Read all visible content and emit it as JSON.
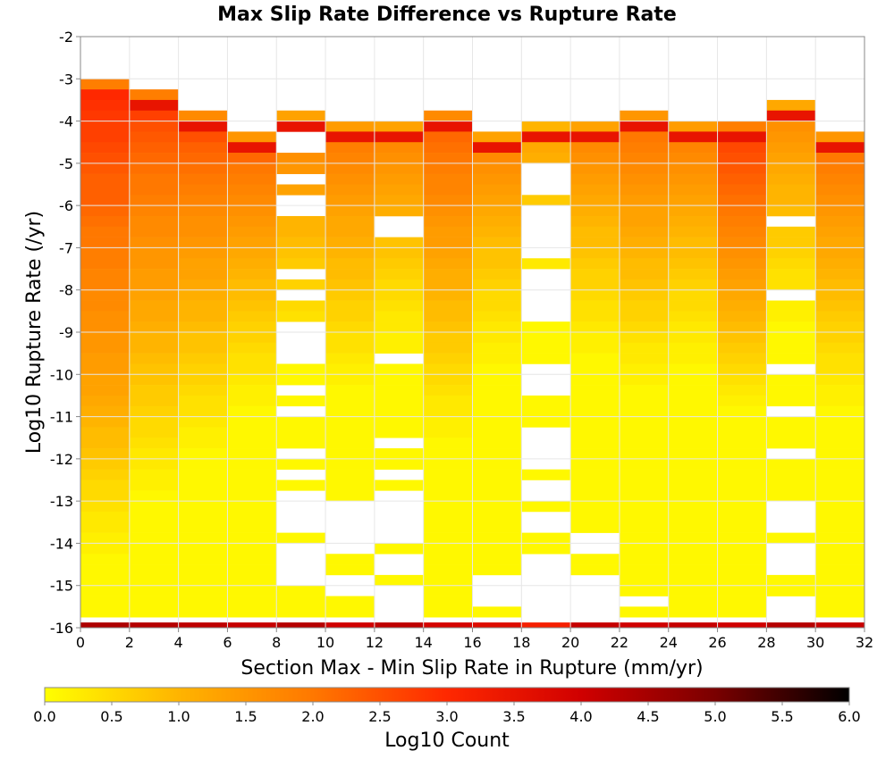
{
  "chart_data": {
    "type": "heatmap",
    "title": "Max Slip Rate Difference vs Rupture Rate",
    "xlabel": "Section Max - Min Slip Rate in Rupture (mm/yr)",
    "ylabel": "Log10 Rupture Rate (/yr)",
    "xlim": [
      0,
      32
    ],
    "ylim": [
      -16,
      -2
    ],
    "x_ticks": [
      "0",
      "2",
      "4",
      "6",
      "8",
      "10",
      "12",
      "14",
      "16",
      "18",
      "20",
      "22",
      "24",
      "26",
      "28",
      "30",
      "32"
    ],
    "y_ticks": [
      "-2",
      "-3",
      "-4",
      "-5",
      "-6",
      "-7",
      "-8",
      "-9",
      "-10",
      "-11",
      "-12",
      "-13",
      "-14",
      "-15",
      "-16"
    ],
    "x_bin_width": 2,
    "y_bin_height": 0.25,
    "grid": true,
    "colorbar": {
      "label": "Log10 Count",
      "range": [
        0,
        6
      ],
      "ticks": [
        "0.0",
        "0.5",
        "1.0",
        "1.5",
        "2.0",
        "2.5",
        "3.0",
        "3.5",
        "4.0",
        "4.5",
        "5.0",
        "5.5",
        "6.0"
      ],
      "colors": [
        "#ffff00",
        "#ffb400",
        "#ff7800",
        "#ff2800",
        "#d00000",
        "#7a0000",
        "#000000"
      ]
    },
    "columns": [
      {
        "x": 1,
        "top": -3.0,
        "values": [
          1.9,
          3.0,
          2.9,
          2.8,
          2.7,
          2.7,
          2.6,
          2.5,
          2.4,
          2.3,
          2.3,
          2.3,
          2.2,
          2.1,
          2.0,
          2.0,
          1.9,
          1.9,
          1.8,
          1.8,
          1.7,
          1.7,
          1.6,
          1.6,
          1.5,
          1.5,
          1.4,
          1.4,
          1.3,
          1.3,
          1.2,
          1.1,
          1.0,
          0.9,
          0.9,
          0.8,
          0.7,
          0.6,
          0.5,
          0.5,
          0.4,
          0.3,
          0.3,
          0.2,
          0.2,
          0.1,
          0.1,
          0.1,
          0.1,
          0.1,
          0.1,
          0.1,
          0.1,
          0.1
        ]
      },
      {
        "x": 3,
        "top": -3.25,
        "values": [
          1.9,
          3.5,
          2.7,
          2.5,
          2.4,
          2.3,
          2.2,
          2.1,
          2.0,
          2.0,
          1.9,
          1.8,
          1.7,
          1.7,
          1.6,
          1.5,
          1.5,
          1.4,
          1.4,
          1.3,
          1.2,
          1.2,
          1.1,
          1.0,
          1.0,
          0.9,
          0.8,
          0.8,
          0.7,
          0.7,
          0.6,
          0.5,
          0.5,
          0.4,
          0.3,
          0.3,
          0.2,
          0.2,
          0.1,
          0.1,
          0.1,
          0.1,
          0.1,
          0.1,
          0.1,
          0.1,
          0.1,
          0.1,
          0.1,
          0.1,
          0.1,
          0.1,
          0.1
        ]
      },
      {
        "x": 5,
        "top": -3.75,
        "values": [
          1.7,
          3.5,
          2.5,
          2.3,
          2.2,
          2.1,
          2.0,
          1.9,
          1.8,
          1.7,
          1.6,
          1.6,
          1.5,
          1.4,
          1.3,
          1.3,
          1.2,
          1.1,
          1.0,
          1.0,
          0.9,
          0.8,
          0.8,
          0.7,
          0.6,
          0.6,
          0.5,
          0.4,
          0.4,
          0.3,
          0.2,
          0.2,
          0.1,
          0.1,
          0.1,
          0.1,
          0.1,
          0.1,
          0.1,
          0.1,
          0.1,
          0.1,
          0.1,
          0.1,
          0.1,
          0.1,
          0.1,
          0.1,
          0.1
        ]
      },
      {
        "x": 7,
        "top": -4.25,
        "values": [
          1.5,
          3.5,
          2.2,
          2.0,
          1.9,
          1.8,
          1.7,
          1.6,
          1.5,
          1.4,
          1.3,
          1.2,
          1.1,
          1.0,
          0.9,
          0.9,
          0.8,
          0.7,
          0.6,
          0.6,
          0.5,
          0.4,
          0.4,
          0.3,
          0.2,
          0.2,
          0.1,
          0.1,
          0.1,
          0.1,
          0.1,
          0.1,
          0.1,
          0.1,
          0.1,
          0.1,
          0.1,
          0.1,
          0.1,
          0.1,
          0.1,
          0.1,
          0.1,
          0.1,
          0.1,
          0.1,
          0.1
        ]
      },
      {
        "x": 9,
        "top": -3.75,
        "values": [
          1.3,
          3.5,
          1.9,
          1.7,
          1.6,
          1.5,
          1.4,
          1.3,
          1.2,
          1.1,
          1.0,
          1.0,
          0.9,
          0.8,
          0.7,
          0.7,
          0.6,
          0.5,
          0.5,
          0.4,
          0.3,
          0.3,
          0.2,
          0.2,
          0.1,
          0.1,
          0.1,
          0.1,
          0.1,
          0.1,
          0.1,
          0.1,
          0.1,
          0.1,
          0.1,
          0.1,
          0.1,
          0.1,
          0.1,
          0.1,
          0.1,
          0.1,
          0.1,
          0.1,
          0.1,
          0.1,
          0.1,
          0.1,
          0.1
        ]
      },
      {
        "x": 11,
        "top": -4.0,
        "values": [
          1.4,
          3.5,
          1.9,
          1.8,
          1.7,
          1.6,
          1.5,
          1.4,
          1.3,
          1.2,
          1.2,
          1.1,
          1.0,
          0.9,
          0.9,
          0.8,
          0.7,
          0.6,
          0.6,
          0.5,
          0.4,
          0.4,
          0.3,
          0.2,
          0.2,
          0.1,
          0.1,
          0.1,
          0.1,
          0.1,
          0.1,
          0.1,
          0.1,
          0.1,
          0.1,
          0.1,
          0.1,
          0.1,
          0.1,
          0.1,
          0.1,
          0.1,
          0.1,
          0.1,
          0.1,
          0.1,
          0.1,
          0.1
        ]
      },
      {
        "x": 13,
        "top": -4.0,
        "values": [
          1.3,
          3.5,
          1.7,
          1.6,
          1.5,
          1.4,
          1.3,
          1.2,
          1.1,
          1.0,
          0.9,
          0.8,
          0.8,
          0.7,
          0.6,
          0.5,
          0.5,
          0.4,
          0.3,
          0.3,
          0.2,
          0.2,
          0.1,
          0.1,
          0.1,
          0.1,
          0.1,
          0.1,
          0.1,
          0.1,
          0.1,
          0.1,
          0.1,
          0.1,
          0.1,
          0.1,
          0.1,
          0.1,
          0.1,
          0.1,
          0.1,
          0.1,
          0.1,
          0.1,
          0.1,
          0.1,
          0.1,
          0.1
        ]
      },
      {
        "x": 15,
        "top": -3.75,
        "values": [
          1.7,
          3.5,
          2.2,
          2.1,
          2.0,
          1.9,
          1.8,
          1.8,
          1.7,
          1.6,
          1.5,
          1.4,
          1.4,
          1.3,
          1.2,
          1.1,
          1.1,
          1.0,
          0.9,
          0.9,
          0.8,
          0.7,
          0.7,
          0.6,
          0.5,
          0.5,
          0.4,
          0.3,
          0.3,
          0.2,
          0.2,
          0.1,
          0.1,
          0.1,
          0.1,
          0.1,
          0.1,
          0.1,
          0.1,
          0.1,
          0.1,
          0.1,
          0.1,
          0.1,
          0.1,
          0.1,
          0.1,
          0.1,
          0.1
        ]
      },
      {
        "x": 17,
        "top": -4.25,
        "values": [
          1.3,
          3.5,
          1.7,
          1.6,
          1.5,
          1.4,
          1.3,
          1.2,
          1.1,
          1.0,
          0.9,
          0.8,
          0.8,
          0.7,
          0.6,
          0.5,
          0.5,
          0.4,
          0.3,
          0.3,
          0.2,
          0.2,
          0.1,
          0.1,
          0.1,
          0.1,
          0.1,
          0.1,
          0.1,
          0.1,
          0.1,
          0.1,
          0.1,
          0.1,
          0.1,
          0.1,
          0.1,
          0.1,
          0.1,
          0.1,
          0.1,
          0.1,
          0.1,
          0.1,
          0.1,
          0.1,
          0.1
        ]
      },
      {
        "x": 19,
        "top": -4.0,
        "values": [
          1.0,
          3.5,
          1.2,
          1.1,
          1.0,
          0.9,
          0.8,
          0.7,
          0.6,
          0.5,
          0.5,
          0.4,
          0.3,
          0.3,
          0.2,
          0.2,
          0.1,
          0.1,
          0.1,
          0.1,
          0.1,
          0.1,
          0.1,
          0.1,
          0.1,
          0.1,
          0.1,
          0.1,
          0.1,
          0.1,
          0.1,
          0.1,
          0.1,
          0.1,
          0.1,
          0.1,
          0.1,
          0.1,
          0.1,
          0.1,
          0.1,
          0.1,
          0.1,
          0.1,
          0.1,
          0.1,
          0.1,
          0.1
        ]
      },
      {
        "x": 21,
        "top": -4.0,
        "values": [
          1.3,
          3.5,
          1.7,
          1.6,
          1.5,
          1.4,
          1.3,
          1.2,
          1.1,
          1.0,
          0.9,
          0.9,
          0.8,
          0.7,
          0.6,
          0.6,
          0.5,
          0.4,
          0.4,
          0.3,
          0.2,
          0.2,
          0.1,
          0.1,
          0.1,
          0.1,
          0.1,
          0.1,
          0.1,
          0.1,
          0.1,
          0.1,
          0.1,
          0.1,
          0.1,
          0.1,
          0.1,
          0.1,
          0.1,
          0.1,
          0.1,
          0.1,
          0.1,
          0.1,
          0.1,
          0.1,
          0.1,
          0.1
        ]
      },
      {
        "x": 23,
        "top": -3.75,
        "values": [
          1.5,
          3.5,
          2.0,
          1.9,
          1.8,
          1.7,
          1.6,
          1.5,
          1.4,
          1.3,
          1.3,
          1.2,
          1.1,
          1.0,
          0.9,
          0.9,
          0.8,
          0.7,
          0.6,
          0.6,
          0.5,
          0.4,
          0.3,
          0.3,
          0.2,
          0.2,
          0.1,
          0.1,
          0.1,
          0.1,
          0.1,
          0.1,
          0.1,
          0.1,
          0.1,
          0.1,
          0.1,
          0.1,
          0.1,
          0.1,
          0.1,
          0.1,
          0.1,
          0.1,
          0.1,
          0.1,
          0.1,
          0.1,
          0.1
        ]
      },
      {
        "x": 25,
        "top": -4.0,
        "values": [
          1.4,
          3.5,
          1.8,
          1.7,
          1.6,
          1.5,
          1.4,
          1.3,
          1.2,
          1.1,
          1.0,
          0.9,
          0.9,
          0.8,
          0.7,
          0.6,
          0.5,
          0.5,
          0.4,
          0.3,
          0.3,
          0.2,
          0.2,
          0.1,
          0.1,
          0.1,
          0.1,
          0.1,
          0.1,
          0.1,
          0.1,
          0.1,
          0.1,
          0.1,
          0.1,
          0.1,
          0.1,
          0.1,
          0.1,
          0.1,
          0.1,
          0.1,
          0.1,
          0.1,
          0.1,
          0.1,
          0.1,
          0.1
        ]
      },
      {
        "x": 27,
        "top": -4.0,
        "values": [
          1.9,
          3.5,
          2.6,
          2.5,
          2.4,
          2.3,
          2.2,
          2.1,
          2.0,
          1.9,
          1.8,
          1.7,
          1.6,
          1.5,
          1.4,
          1.3,
          1.2,
          1.1,
          1.0,
          0.9,
          0.8,
          0.7,
          0.6,
          0.5,
          0.4,
          0.3,
          0.2,
          0.1,
          0.1,
          0.1,
          0.1,
          0.1,
          0.1,
          0.1,
          0.1,
          0.1,
          0.1,
          0.1,
          0.1,
          0.1,
          0.1,
          0.1,
          0.1,
          0.1,
          0.1,
          0.1,
          0.1,
          0.1
        ]
      },
      {
        "x": 29,
        "top": -3.5,
        "values": [
          1.2,
          3.5,
          1.6,
          1.5,
          1.4,
          1.3,
          1.2,
          1.1,
          1.0,
          1.0,
          0.9,
          0.8,
          0.7,
          0.7,
          0.6,
          0.5,
          0.4,
          0.4,
          0.3,
          0.2,
          0.2,
          0.1,
          0.1,
          0.1,
          0.1,
          0.1,
          0.1,
          0.1,
          0.1,
          0.1,
          0.1,
          0.1,
          0.1,
          0.1,
          0.1,
          0.1,
          0.1,
          0.1,
          0.1,
          0.1,
          0.1,
          0.1,
          0.1,
          0.1,
          0.1,
          0.1,
          0.1,
          0.1,
          0.1,
          0.1
        ]
      },
      {
        "x": 31,
        "top": -4.25,
        "values": [
          1.5,
          3.5,
          2.0,
          1.9,
          1.8,
          1.7,
          1.6,
          1.5,
          1.4,
          1.3,
          1.2,
          1.2,
          1.1,
          1.0,
          0.9,
          0.9,
          0.8,
          0.7,
          0.6,
          0.6,
          0.5,
          0.4,
          0.4,
          0.3,
          0.2,
          0.2,
          0.1,
          0.1,
          0.1,
          0.1,
          0.1,
          0.1,
          0.1,
          0.1,
          0.1,
          0.1,
          0.1,
          0.1,
          0.1,
          0.1,
          0.1,
          0.1,
          0.1,
          0.1,
          0.1,
          0.1,
          0.1
        ]
      }
    ],
    "empty_cells": [
      {
        "x": 9,
        "y": [
          -4.5,
          -4.75,
          -5.5,
          -6.0,
          -6.25,
          -7.75,
          -8.25,
          -9.0,
          -9.25,
          -9.5,
          -9.75,
          -10.5,
          -11.0,
          -12.0,
          -12.5,
          -13.0,
          -13.25,
          -13.5,
          -13.75,
          -14.25,
          -14.5,
          -14.75,
          -15.0
        ]
      },
      {
        "x": 11,
        "y": [
          -13.25,
          -13.5,
          -13.75,
          -14.0,
          -14.25,
          -15.0,
          -15.25
        ]
      },
      {
        "x": 13,
        "y": [
          -6.5,
          -6.75,
          -9.75,
          -11.75,
          -12.5,
          -13.0,
          -13.25,
          -13.5,
          -13.75,
          -14.0,
          -14.5,
          -14.75,
          -15.25,
          -15.5,
          -15.75
        ]
      },
      {
        "x": 17,
        "y": [
          -15.0,
          -15.25,
          -15.5
        ]
      },
      {
        "x": 19,
        "y": [
          -5.25,
          -5.5,
          -5.75,
          -6.25,
          -6.5,
          -6.75,
          -7.0,
          -7.25,
          -7.75,
          -8.0,
          -8.25,
          -8.5,
          -8.75,
          -10.0,
          -10.25,
          -10.5,
          -11.5,
          -11.75,
          -12.0,
          -12.25,
          -12.75,
          -13.0,
          -13.5,
          -13.75,
          -14.5,
          -14.75,
          -15.0,
          -15.25,
          -15.5,
          -15.75
        ]
      },
      {
        "x": 21,
        "y": [
          -14.0,
          -14.25,
          -15.0,
          -15.25,
          -15.5,
          -15.75
        ]
      },
      {
        "x": 23,
        "y": [
          -15.5
        ]
      },
      {
        "x": 29,
        "y": [
          -6.5,
          -8.25,
          -10.0,
          -11.0,
          -12.0,
          -13.25,
          -13.5,
          -13.75,
          -14.25,
          -14.5,
          -14.75,
          -15.5,
          -15.75
        ]
      }
    ],
    "bottom_row": {
      "y": -16,
      "values": [
        4.4,
        4.3,
        4.2,
        4.1,
        4.3,
        4.0,
        4.2,
        3.9,
        3.7,
        3.2,
        4.1,
        4.0,
        4.1,
        4.0,
        4.3,
        4.1
      ]
    }
  }
}
